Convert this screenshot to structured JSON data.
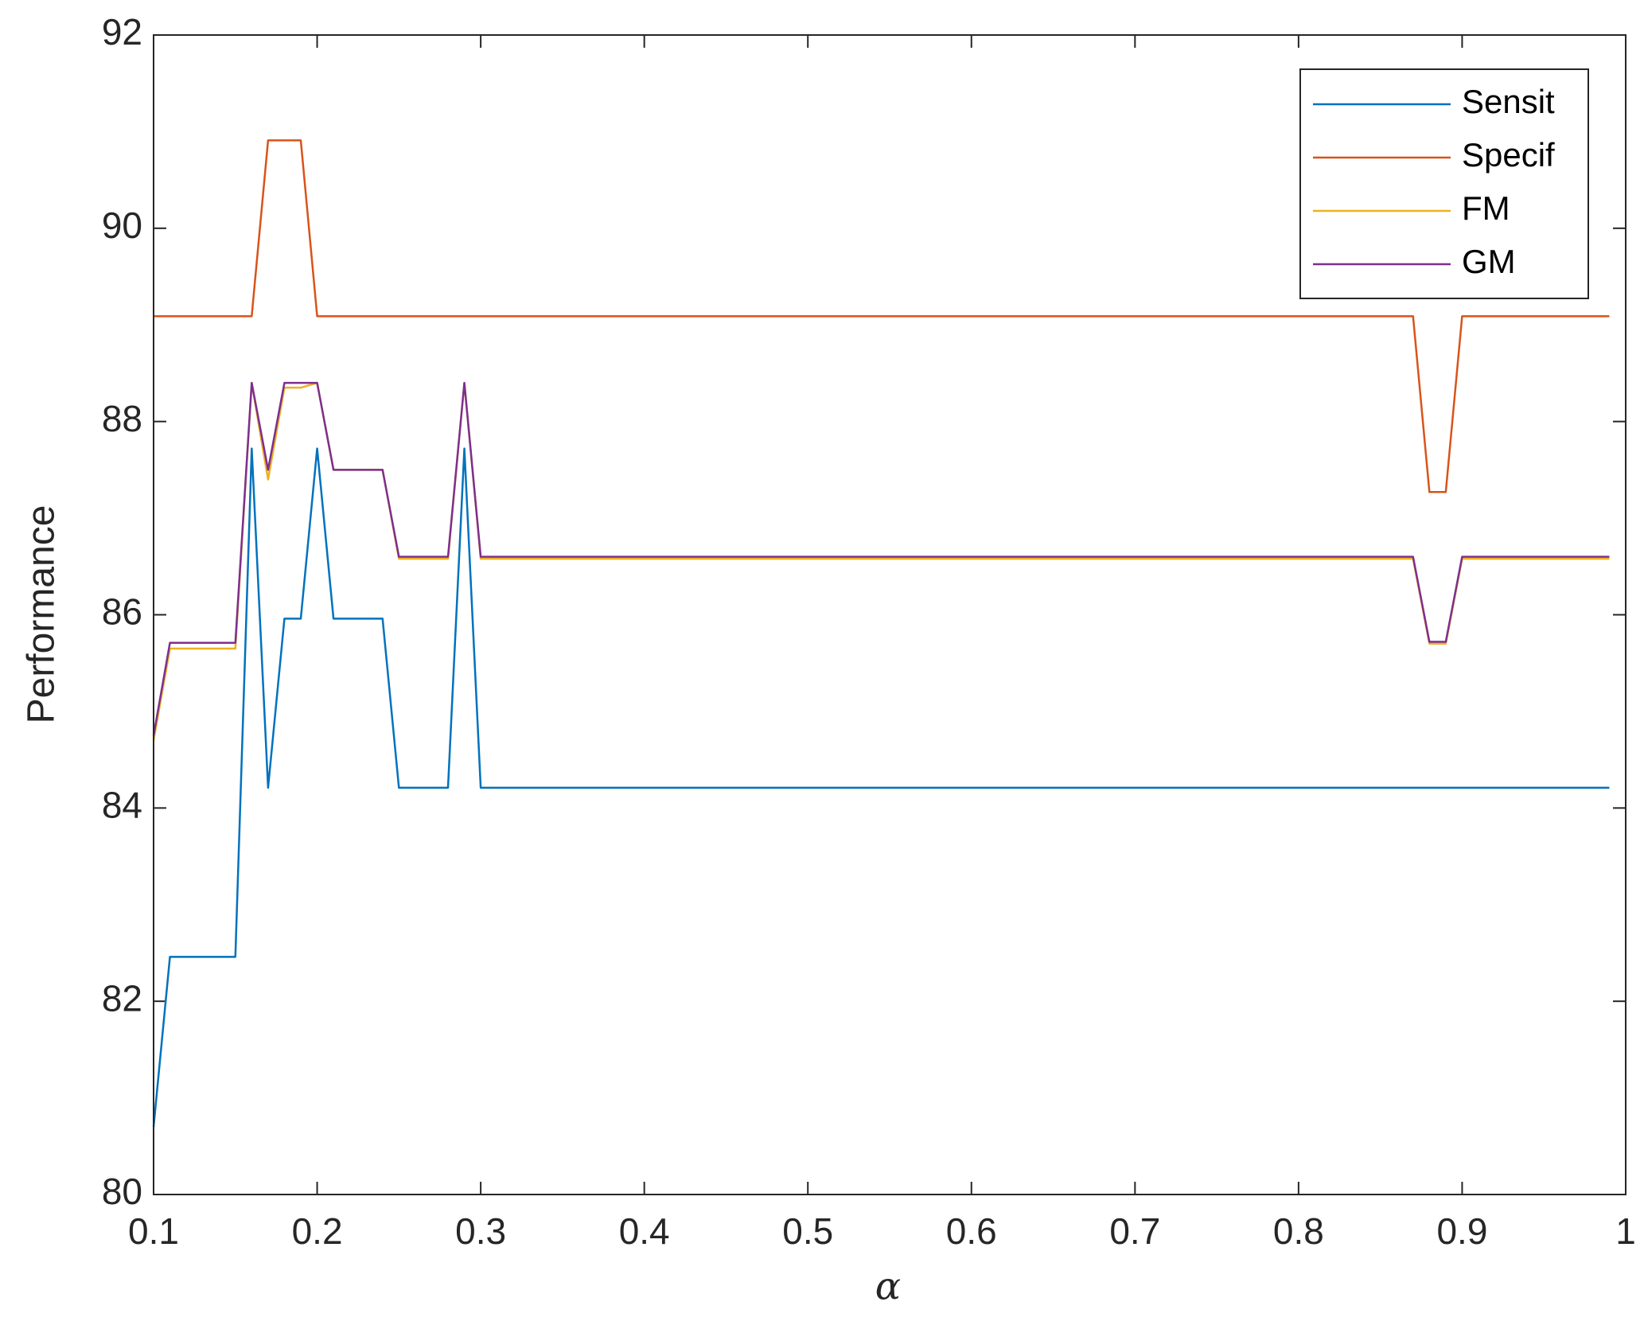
{
  "chart_data": {
    "type": "line",
    "xlabel": "α",
    "ylabel": "Performance",
    "x": [
      0.1,
      0.11,
      0.12,
      0.13,
      0.14,
      0.15,
      0.16,
      0.17,
      0.18,
      0.19,
      0.2,
      0.21,
      0.22,
      0.23,
      0.24,
      0.25,
      0.26,
      0.27,
      0.28,
      0.29,
      0.3,
      0.31,
      0.32,
      0.33,
      0.34,
      0.35,
      0.36,
      0.37,
      0.38,
      0.39,
      0.4,
      0.41,
      0.42,
      0.43,
      0.44,
      0.45,
      0.46,
      0.47,
      0.48,
      0.49,
      0.5,
      0.51,
      0.52,
      0.53,
      0.54,
      0.55,
      0.56,
      0.57,
      0.58,
      0.59,
      0.6,
      0.61,
      0.62,
      0.63,
      0.64,
      0.65,
      0.66,
      0.67,
      0.68,
      0.69,
      0.7,
      0.71,
      0.72,
      0.73,
      0.74,
      0.75,
      0.76,
      0.77,
      0.78,
      0.79,
      0.8,
      0.81,
      0.82,
      0.83,
      0.84,
      0.85,
      0.86,
      0.87,
      0.88,
      0.89,
      0.9,
      0.91,
      0.92,
      0.93,
      0.94,
      0.95,
      0.96,
      0.97,
      0.98,
      0.99
    ],
    "series": [
      {
        "name": "Sensit",
        "color": "#0072BD",
        "values": [
          80.7,
          82.46,
          82.46,
          82.46,
          82.46,
          82.46,
          87.72,
          84.21,
          85.96,
          85.96,
          87.72,
          85.96,
          85.96,
          85.96,
          85.96,
          84.21,
          84.21,
          84.21,
          84.21,
          87.72,
          84.21,
          84.21,
          84.21,
          84.21,
          84.21,
          84.21,
          84.21,
          84.21,
          84.21,
          84.21,
          84.21,
          84.21,
          84.21,
          84.21,
          84.21,
          84.21,
          84.21,
          84.21,
          84.21,
          84.21,
          84.21,
          84.21,
          84.21,
          84.21,
          84.21,
          84.21,
          84.21,
          84.21,
          84.21,
          84.21,
          84.21,
          84.21,
          84.21,
          84.21,
          84.21,
          84.21,
          84.21,
          84.21,
          84.21,
          84.21,
          84.21,
          84.21,
          84.21,
          84.21,
          84.21,
          84.21,
          84.21,
          84.21,
          84.21,
          84.21,
          84.21,
          84.21,
          84.21,
          84.21,
          84.21,
          84.21,
          84.21,
          84.21,
          84.21,
          84.21,
          84.21,
          84.21,
          84.21,
          84.21,
          84.21,
          84.21,
          84.21,
          84.21,
          84.21,
          84.21
        ]
      },
      {
        "name": "Specif",
        "color": "#D95319",
        "values": [
          89.09,
          89.09,
          89.09,
          89.09,
          89.09,
          89.09,
          89.09,
          90.91,
          90.91,
          90.91,
          89.09,
          89.09,
          89.09,
          89.09,
          89.09,
          89.09,
          89.09,
          89.09,
          89.09,
          89.09,
          89.09,
          89.09,
          89.09,
          89.09,
          89.09,
          89.09,
          89.09,
          89.09,
          89.09,
          89.09,
          89.09,
          89.09,
          89.09,
          89.09,
          89.09,
          89.09,
          89.09,
          89.09,
          89.09,
          89.09,
          89.09,
          89.09,
          89.09,
          89.09,
          89.09,
          89.09,
          89.09,
          89.09,
          89.09,
          89.09,
          89.09,
          89.09,
          89.09,
          89.09,
          89.09,
          89.09,
          89.09,
          89.09,
          89.09,
          89.09,
          89.09,
          89.09,
          89.09,
          89.09,
          89.09,
          89.09,
          89.09,
          89.09,
          89.09,
          89.09,
          89.09,
          89.09,
          89.09,
          89.09,
          89.09,
          89.09,
          89.09,
          89.09,
          87.27,
          87.27,
          89.09,
          89.09,
          89.09,
          89.09,
          89.09,
          89.09,
          89.09,
          89.09,
          89.09,
          89.09
        ]
      },
      {
        "name": "FM",
        "color": "#EDB120",
        "values": [
          84.7,
          85.65,
          85.65,
          85.65,
          85.65,
          85.65,
          88.4,
          87.4,
          88.35,
          88.35,
          88.4,
          87.5,
          87.5,
          87.5,
          87.5,
          86.58,
          86.58,
          86.58,
          86.58,
          88.4,
          86.58,
          86.58,
          86.58,
          86.58,
          86.58,
          86.58,
          86.58,
          86.58,
          86.58,
          86.58,
          86.58,
          86.58,
          86.58,
          86.58,
          86.58,
          86.58,
          86.58,
          86.58,
          86.58,
          86.58,
          86.58,
          86.58,
          86.58,
          86.58,
          86.58,
          86.58,
          86.58,
          86.58,
          86.58,
          86.58,
          86.58,
          86.58,
          86.58,
          86.58,
          86.58,
          86.58,
          86.58,
          86.58,
          86.58,
          86.58,
          86.58,
          86.58,
          86.58,
          86.58,
          86.58,
          86.58,
          86.58,
          86.58,
          86.58,
          86.58,
          86.58,
          86.58,
          86.58,
          86.58,
          86.58,
          86.58,
          86.58,
          86.58,
          85.7,
          85.7,
          86.58,
          86.58,
          86.58,
          86.58,
          86.58,
          86.58,
          86.58,
          86.58,
          86.58,
          86.58
        ]
      },
      {
        "name": "GM",
        "color": "#7E2F8E",
        "values": [
          84.75,
          85.71,
          85.71,
          85.71,
          85.71,
          85.71,
          88.4,
          87.5,
          88.4,
          88.4,
          88.4,
          87.5,
          87.5,
          87.5,
          87.5,
          86.6,
          86.6,
          86.6,
          86.6,
          88.4,
          86.6,
          86.6,
          86.6,
          86.6,
          86.6,
          86.6,
          86.6,
          86.6,
          86.6,
          86.6,
          86.6,
          86.6,
          86.6,
          86.6,
          86.6,
          86.6,
          86.6,
          86.6,
          86.6,
          86.6,
          86.6,
          86.6,
          86.6,
          86.6,
          86.6,
          86.6,
          86.6,
          86.6,
          86.6,
          86.6,
          86.6,
          86.6,
          86.6,
          86.6,
          86.6,
          86.6,
          86.6,
          86.6,
          86.6,
          86.6,
          86.6,
          86.6,
          86.6,
          86.6,
          86.6,
          86.6,
          86.6,
          86.6,
          86.6,
          86.6,
          86.6,
          86.6,
          86.6,
          86.6,
          86.6,
          86.6,
          86.6,
          86.6,
          85.72,
          85.72,
          86.6,
          86.6,
          86.6,
          86.6,
          86.6,
          86.6,
          86.6,
          86.6,
          86.6,
          86.6
        ]
      }
    ],
    "xlim": [
      0.1,
      1
    ],
    "xticks": [
      0.1,
      0.2,
      0.3,
      0.4,
      0.5,
      0.6,
      0.7,
      0.8,
      0.9,
      1
    ],
    "ylim": [
      80,
      92
    ],
    "yticks": [
      80,
      82,
      84,
      86,
      88,
      90,
      92
    ],
    "legend": "top-right"
  }
}
